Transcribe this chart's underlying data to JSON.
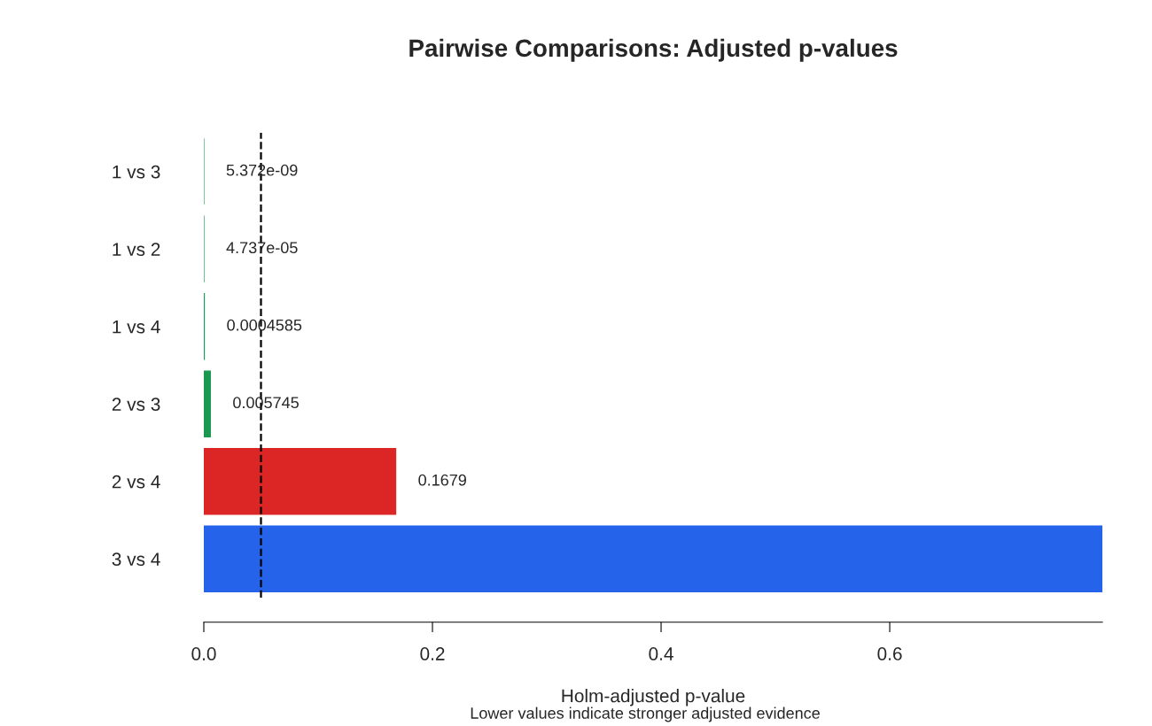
{
  "chart_data": {
    "type": "bar",
    "orientation": "horizontal",
    "title": "Pairwise Comparisons: Adjusted p-values",
    "xlabel": "Holm-adjusted p-value",
    "annotations": [
      "Lower values indicate stronger adjusted evidence"
    ],
    "categories": [
      "1 vs 3",
      "1 vs 2",
      "1 vs 4",
      "2 vs 3",
      "2 vs 4",
      "3 vs 4"
    ],
    "values": [
      5.372e-09,
      4.737e-05,
      0.0004585,
      0.005745,
      0.1679,
      0.786
    ],
    "value_labels": [
      "5.372e-09",
      "4.737e-05",
      "0.0004585",
      "0.005745",
      "0.1679",
      null
    ],
    "colors": [
      "#1a9850",
      "#1a9850",
      "#1a9850",
      "#1a9850",
      "#dc2626",
      "#2563eb"
    ],
    "xlim": [
      0,
      0.786
    ],
    "xticks": [
      {
        "value": 0,
        "label": "0.0"
      },
      0.2,
      0.4,
      0.6
    ],
    "ref_lines": [
      {
        "axis": "x",
        "value": 0.05,
        "label": null,
        "color": "#000000",
        "line_style": "dashed"
      }
    ],
    "grid": false,
    "legend": false
  }
}
